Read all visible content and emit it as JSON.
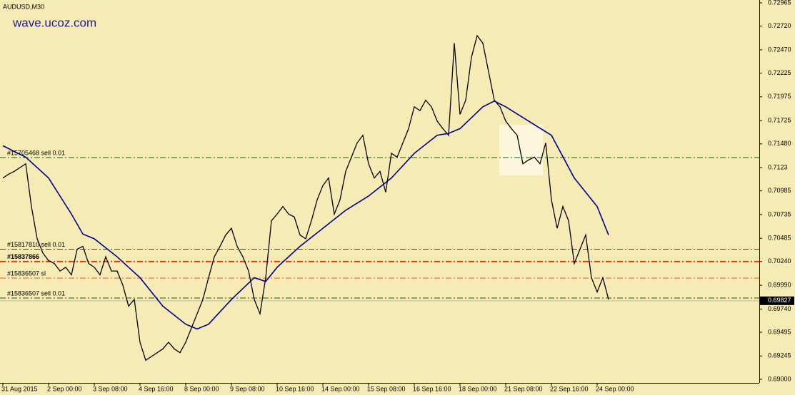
{
  "chart_data": {
    "type": "line",
    "title": "AUDUSD,M30",
    "watermark": "wave.ucoz.com",
    "ylim": [
      0.68962,
      0.72995
    ],
    "yticks": [
      0.72965,
      {
        "value": 0.7272,
        "label": "0.72720"
      },
      {
        "value": 0.7247,
        "label": "0.72470"
      },
      0.72225,
      0.71975,
      0.71725,
      {
        "value": 0.7148,
        "label": "0.71480"
      },
      0.7123,
      0.70985,
      0.70735,
      0.70485,
      {
        "value": 0.7024,
        "label": "0.70240"
      },
      {
        "value": 0.6999,
        "label": "0.69990"
      },
      {
        "value": 0.6974,
        "label": "0.69740"
      },
      0.69495,
      0.69245,
      {
        "value": 0.69,
        "label": "0.69000"
      }
    ],
    "categories": [
      "31 Aug 2015",
      null,
      null,
      null,
      null,
      null,
      null,
      null,
      "2 Sep 00:00",
      null,
      null,
      null,
      null,
      null,
      null,
      null,
      "3 Sep 08:00",
      null,
      null,
      null,
      null,
      null,
      null,
      null,
      "4 Sep 16:00",
      null,
      null,
      null,
      null,
      null,
      null,
      null,
      "8 Sep 00:00",
      null,
      null,
      null,
      null,
      null,
      null,
      null,
      "9 Sep 08:00",
      null,
      null,
      null,
      null,
      null,
      null,
      null,
      "10 Sep 16:00",
      null,
      null,
      null,
      null,
      null,
      null,
      null,
      "14 Sep 00:00",
      null,
      null,
      null,
      null,
      null,
      null,
      null,
      "15 Sep 08:00",
      null,
      null,
      null,
      null,
      null,
      null,
      null,
      "16 Sep 16:00",
      null,
      null,
      null,
      null,
      null,
      null,
      null,
      "18 Sep 00:00",
      null,
      null,
      null,
      null,
      null,
      null,
      null,
      "21 Sep 08:00",
      null,
      null,
      null,
      null,
      null,
      null,
      null,
      "22 Sep 16:00",
      null,
      null,
      null,
      null,
      null,
      null,
      null,
      "24 Sep 00:00",
      null,
      null
    ],
    "series": [
      {
        "color": "#000000",
        "values": [
          0.7112,
          0.7116,
          0.7119,
          0.7123,
          0.7127,
          0.7082,
          0.7048,
          0.7033,
          0.7025,
          0.7022,
          0.7014,
          0.7018,
          0.701,
          0.7037,
          0.704,
          0.7022,
          0.7018,
          0.701,
          0.7029,
          0.7014,
          0.7014,
          0.6999,
          0.6977,
          0.6984,
          0.6939,
          0.692,
          0.6924,
          0.6928,
          0.6932,
          0.6939,
          0.6932,
          0.6928,
          0.6939,
          0.6954,
          0.6969,
          0.6984,
          0.7007,
          0.7029,
          0.704,
          0.7052,
          0.7059,
          0.704,
          0.7029,
          0.7014,
          0.6984,
          0.6969,
          0.7007,
          0.7067,
          0.7074,
          0.7082,
          0.7074,
          0.7071,
          0.7052,
          0.7048,
          0.7067,
          0.7089,
          0.7104,
          0.7112,
          0.7074,
          0.7089,
          0.7119,
          0.7134,
          0.7149,
          0.7157,
          0.7127,
          0.7112,
          0.7119,
          0.7097,
          0.7138,
          0.7134,
          0.7149,
          0.7164,
          0.7187,
          0.7183,
          0.7194,
          0.7187,
          0.7172,
          0.7164,
          0.7157,
          0.7254,
          0.7179,
          0.7194,
          0.7239,
          0.7262,
          0.7254,
          0.7224,
          0.7194,
          0.7187,
          0.7172,
          0.7164,
          0.7157,
          0.7127,
          0.7131,
          0.7134,
          0.7127,
          0.7149,
          0.7089,
          0.7059,
          0.7082,
          0.7067,
          0.7022,
          0.7037,
          0.7052,
          0.7007,
          0.6992,
          0.7007,
          0.6984
        ]
      },
      {
        "color": "#00008b",
        "x": [
          0,
          4,
          8,
          12,
          14,
          16,
          20,
          24,
          28,
          32,
          34,
          36,
          40,
          44,
          46,
          48,
          52,
          56,
          60,
          64,
          68,
          72,
          76,
          78,
          80,
          84,
          86,
          88,
          92,
          96,
          100,
          104,
          106
        ],
        "values": [
          0.7146,
          0.7134,
          0.7112,
          0.7074,
          0.7053,
          0.7048,
          0.7029,
          0.7007,
          0.6977,
          0.6958,
          0.6953,
          0.6958,
          0.6984,
          0.7007,
          0.7003,
          0.7018,
          0.704,
          0.7059,
          0.7078,
          0.7093,
          0.7112,
          0.7138,
          0.7157,
          0.7159,
          0.7164,
          0.7187,
          0.7193,
          0.7187,
          0.7172,
          0.7157,
          0.7112,
          0.7082,
          0.7052
        ]
      }
    ],
    "levels": [
      {
        "label": "#15705468 sell 0.01",
        "value": 0.71335,
        "color": "#006400"
      },
      {
        "label": "#15817810 sell 0.01",
        "value": 0.7037,
        "color": "#006400"
      },
      {
        "label": "#15837866",
        "value": 0.7024,
        "color": "#ff3300"
      },
      {
        "label": "#15836507 sl",
        "value": 0.70066,
        "color": "#e8542a"
      },
      {
        "label": "#15836507 sell 0.01",
        "value": 0.69856,
        "color": "#006400"
      }
    ],
    "last_price": 0.69827
  }
}
